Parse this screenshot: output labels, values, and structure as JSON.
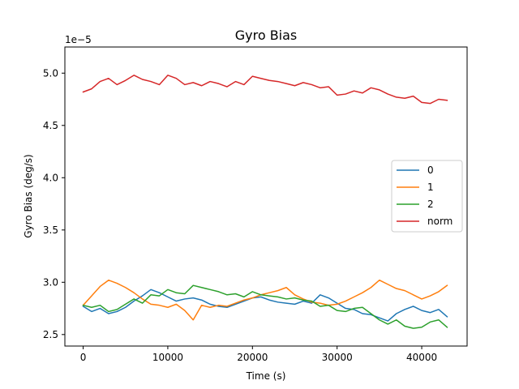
{
  "chart_data": {
    "type": "line",
    "title": "Gyro Bias",
    "xlabel": "Time (s)",
    "ylabel": "Gyro Bias (deg/s)",
    "offset_label": "1e−5",
    "xlim": [
      -2160,
      45360
    ],
    "ylim": [
      2.39,
      5.25
    ],
    "x_ticks": [
      0,
      10000,
      20000,
      30000,
      40000
    ],
    "x_tick_labels": [
      "0",
      "10000",
      "20000",
      "30000",
      "40000"
    ],
    "y_ticks": [
      2.5,
      3.0,
      3.5,
      4.0,
      4.5,
      5.0
    ],
    "y_tick_labels": [
      "2.5",
      "3.0",
      "3.5",
      "4.0",
      "4.5",
      "5.0"
    ],
    "legend_position": "center-right",
    "grid": false,
    "x": [
      0,
      1000,
      2000,
      3000,
      4000,
      5000,
      6000,
      7000,
      8000,
      9000,
      10000,
      11000,
      12000,
      13000,
      14000,
      15000,
      16000,
      17000,
      18000,
      19000,
      20000,
      21000,
      22000,
      23000,
      24000,
      25000,
      26000,
      27000,
      28000,
      29000,
      30000,
      31000,
      32000,
      33000,
      34000,
      35000,
      36000,
      37000,
      38000,
      39000,
      40000,
      41000,
      42000,
      43000
    ],
    "series": [
      {
        "name": "0",
        "color": "#1f77b4",
        "values": [
          2.77,
          2.72,
          2.75,
          2.7,
          2.72,
          2.76,
          2.82,
          2.87,
          2.93,
          2.9,
          2.86,
          2.82,
          2.84,
          2.85,
          2.83,
          2.79,
          2.77,
          2.76,
          2.79,
          2.82,
          2.85,
          2.86,
          2.83,
          2.81,
          2.8,
          2.79,
          2.82,
          2.8,
          2.88,
          2.85,
          2.8,
          2.75,
          2.74,
          2.7,
          2.69,
          2.66,
          2.63,
          2.7,
          2.74,
          2.77,
          2.73,
          2.71,
          2.74,
          2.67
        ]
      },
      {
        "name": "1",
        "color": "#ff7f0e",
        "values": [
          2.78,
          2.87,
          2.96,
          3.02,
          2.99,
          2.95,
          2.9,
          2.84,
          2.79,
          2.78,
          2.76,
          2.79,
          2.73,
          2.64,
          2.78,
          2.76,
          2.78,
          2.77,
          2.8,
          2.83,
          2.85,
          2.88,
          2.9,
          2.92,
          2.95,
          2.88,
          2.84,
          2.81,
          2.8,
          2.78,
          2.79,
          2.82,
          2.86,
          2.9,
          2.95,
          3.02,
          2.98,
          2.94,
          2.92,
          2.88,
          2.84,
          2.87,
          2.91,
          2.97
        ]
      },
      {
        "name": "2",
        "color": "#2ca02c",
        "values": [
          2.78,
          2.76,
          2.78,
          2.72,
          2.74,
          2.79,
          2.84,
          2.8,
          2.88,
          2.87,
          2.93,
          2.9,
          2.89,
          2.97,
          2.95,
          2.93,
          2.91,
          2.88,
          2.89,
          2.86,
          2.91,
          2.88,
          2.87,
          2.86,
          2.84,
          2.85,
          2.83,
          2.82,
          2.77,
          2.78,
          2.73,
          2.72,
          2.75,
          2.76,
          2.7,
          2.64,
          2.6,
          2.64,
          2.58,
          2.56,
          2.57,
          2.62,
          2.64,
          2.57
        ]
      },
      {
        "name": "norm",
        "color": "#d62728",
        "values": [
          4.82,
          4.85,
          4.92,
          4.95,
          4.89,
          4.93,
          4.98,
          4.94,
          4.92,
          4.89,
          4.98,
          4.95,
          4.89,
          4.91,
          4.88,
          4.92,
          4.9,
          4.87,
          4.92,
          4.89,
          4.97,
          4.95,
          4.93,
          4.92,
          4.9,
          4.88,
          4.91,
          4.89,
          4.86,
          4.87,
          4.79,
          4.8,
          4.83,
          4.81,
          4.86,
          4.84,
          4.8,
          4.77,
          4.76,
          4.78,
          4.72,
          4.71,
          4.75,
          4.74
        ]
      }
    ]
  }
}
